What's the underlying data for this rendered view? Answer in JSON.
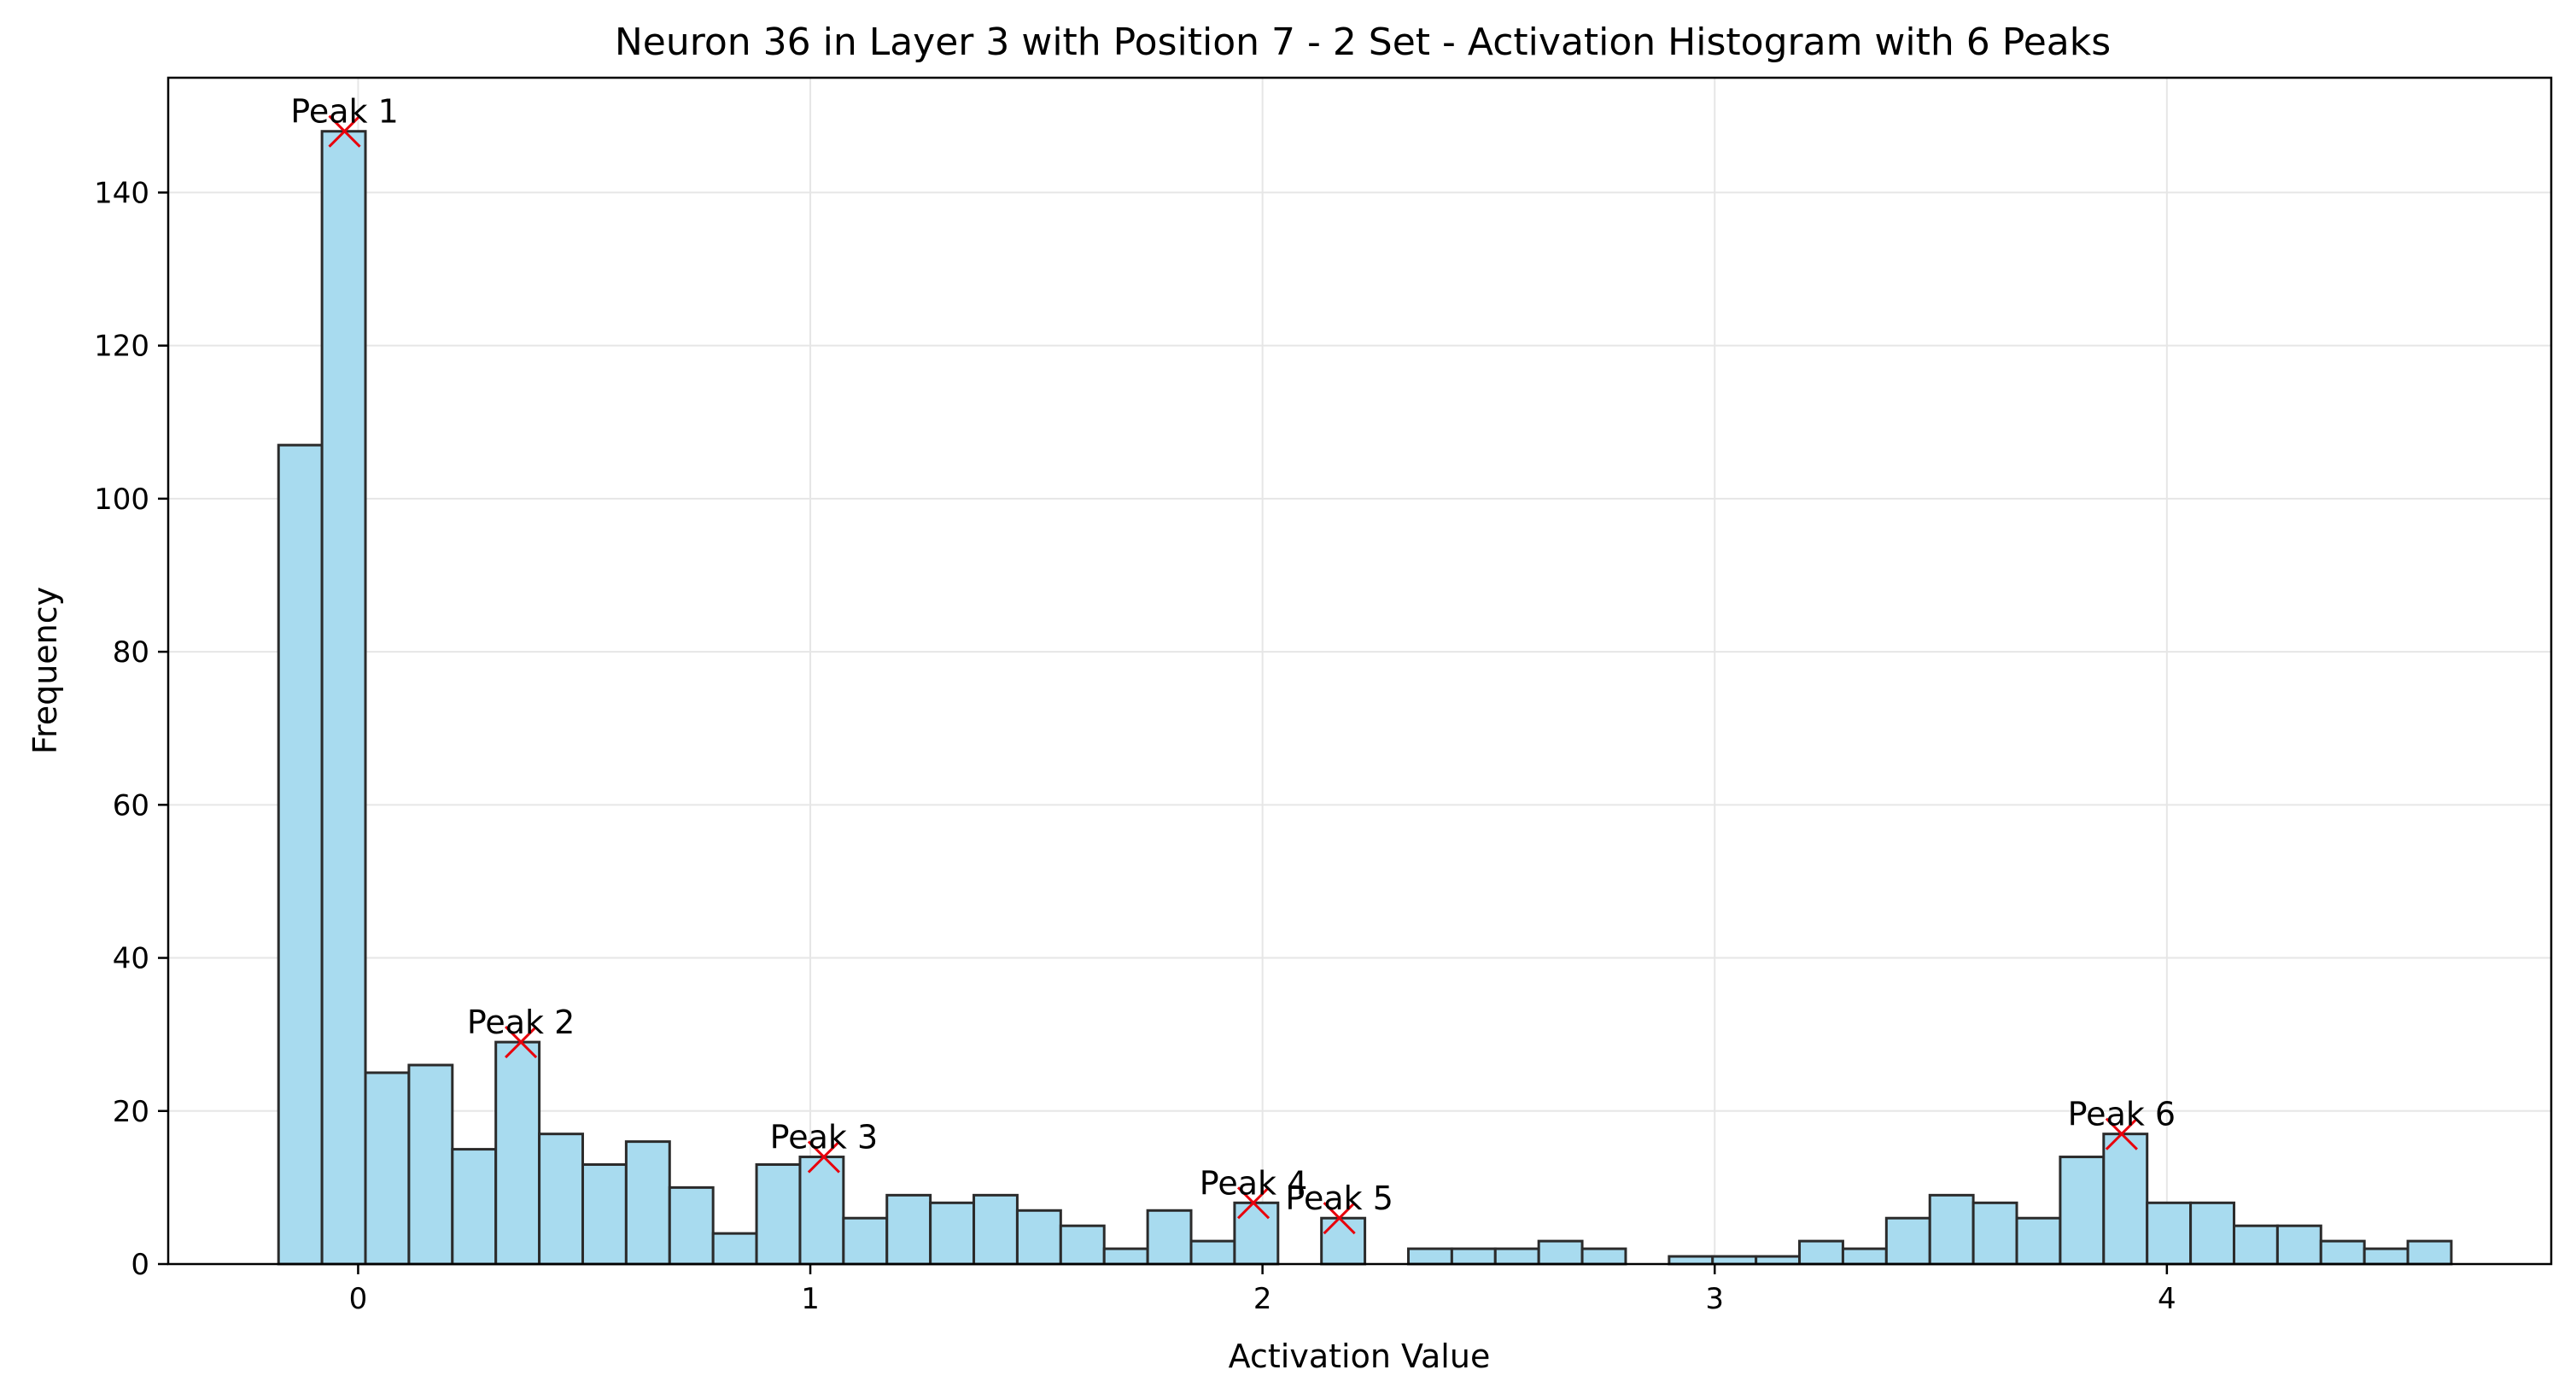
{
  "chart_data": {
    "type": "bar",
    "title": "Neuron 36 in Layer 3 with Position 7 - 2 Set - Activation Histogram with 6 Peaks",
    "xlabel": "Activation Value",
    "ylabel": "Frequency",
    "xlim": [
      -0.42,
      4.85
    ],
    "ylim": [
      0,
      155
    ],
    "xticks": [
      0,
      1,
      2,
      3,
      4
    ],
    "yticks": [
      0,
      20,
      40,
      60,
      80,
      100,
      120,
      140
    ],
    "grid": true,
    "bin_start": -0.176,
    "bin_width": 0.0961,
    "values": [
      107,
      148,
      25,
      26,
      15,
      29,
      17,
      13,
      16,
      10,
      4,
      13,
      14,
      6,
      9,
      8,
      9,
      7,
      5,
      2,
      7,
      3,
      8,
      0,
      6,
      0,
      2,
      2,
      2,
      3,
      2,
      0,
      1,
      1,
      1,
      3,
      2,
      6,
      9,
      8,
      6,
      14,
      17,
      8,
      8,
      5,
      5,
      3,
      2,
      3
    ],
    "peaks": [
      {
        "label": "Peak 1",
        "x": -0.03,
        "y": 148
      },
      {
        "label": "Peak 2",
        "x": 0.36,
        "y": 29
      },
      {
        "label": "Peak 3",
        "x": 1.03,
        "y": 14
      },
      {
        "label": "Peak 4",
        "x": 1.98,
        "y": 8
      },
      {
        "label": "Peak 5",
        "x": 2.17,
        "y": 6
      },
      {
        "label": "Peak 6",
        "x": 3.9,
        "y": 17
      }
    ],
    "bar_color": "#a8dbef",
    "bar_edge_color": "#2b2b2b",
    "peak_marker_color": "#e8000b",
    "grid_color": "#e6e6e6"
  }
}
